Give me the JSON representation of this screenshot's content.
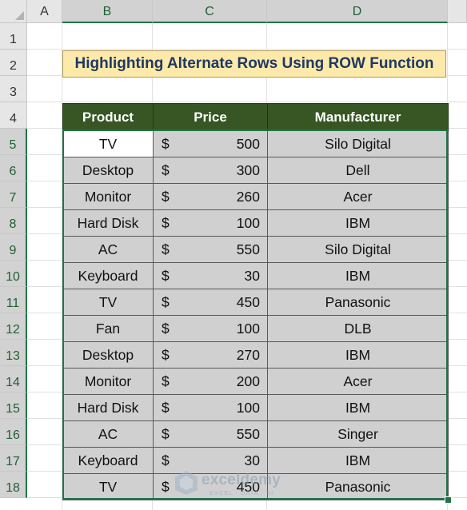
{
  "columns": [
    "A",
    "B",
    "C",
    "D"
  ],
  "rows": [
    "1",
    "2",
    "3",
    "4",
    "5",
    "6",
    "7",
    "8",
    "9",
    "10",
    "11",
    "12",
    "13",
    "14",
    "15",
    "16",
    "17",
    "18"
  ],
  "title": "Highlighting Alternate Rows Using ROW Function",
  "table": {
    "headers": [
      "Product",
      "Price",
      "Manufacturer"
    ],
    "rows": [
      {
        "product": "TV",
        "currency": "$",
        "price": "500",
        "manufacturer": "Silo Digital"
      },
      {
        "product": "Desktop",
        "currency": "$",
        "price": "300",
        "manufacturer": "Dell"
      },
      {
        "product": "Monitor",
        "currency": "$",
        "price": "260",
        "manufacturer": "Acer"
      },
      {
        "product": "Hard Disk",
        "currency": "$",
        "price": "100",
        "manufacturer": "IBM"
      },
      {
        "product": "AC",
        "currency": "$",
        "price": "550",
        "manufacturer": "Silo Digital"
      },
      {
        "product": "Keyboard",
        "currency": "$",
        "price": "30",
        "manufacturer": "IBM"
      },
      {
        "product": "TV",
        "currency": "$",
        "price": "450",
        "manufacturer": "Panasonic"
      },
      {
        "product": "Fan",
        "currency": "$",
        "price": "100",
        "manufacturer": "DLB"
      },
      {
        "product": "Desktop",
        "currency": "$",
        "price": "270",
        "manufacturer": "IBM"
      },
      {
        "product": "Monitor",
        "currency": "$",
        "price": "200",
        "manufacturer": "Acer"
      },
      {
        "product": "Hard Disk",
        "currency": "$",
        "price": "100",
        "manufacturer": "IBM"
      },
      {
        "product": "AC",
        "currency": "$",
        "price": "550",
        "manufacturer": "Singer"
      },
      {
        "product": "Keyboard",
        "currency": "$",
        "price": "30",
        "manufacturer": "IBM"
      },
      {
        "product": "TV",
        "currency": "$",
        "price": "450",
        "manufacturer": "Panasonic"
      }
    ]
  },
  "watermark": {
    "name": "exceldemy",
    "tagline": "EXCEL · DATA · BI",
    "icon": "exceldemy-logo-icon"
  },
  "colors": {
    "header_fill": "#375623",
    "title_fill": "#fde9a9",
    "title_text": "#1f3864",
    "cell_fill": "#d0d0d0",
    "selection": "#217346"
  }
}
